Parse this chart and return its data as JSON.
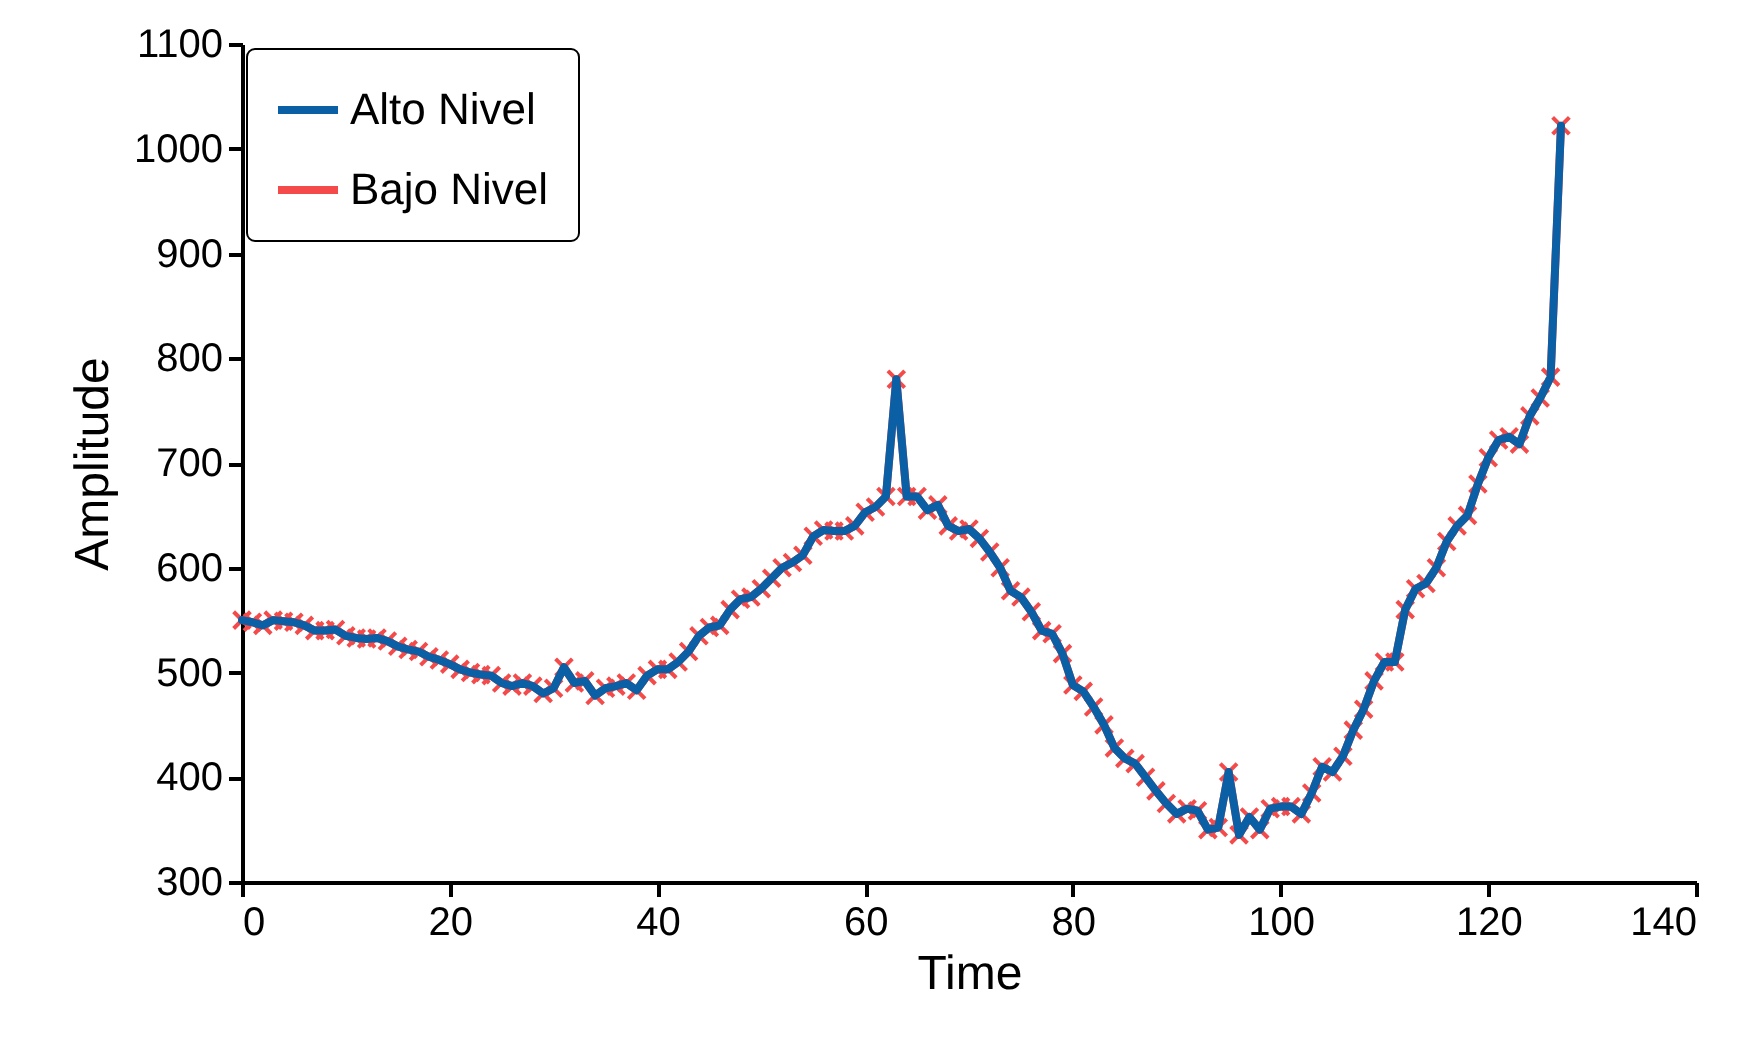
{
  "chart_data": {
    "type": "line",
    "xlabel": "Time",
    "ylabel": "Amplitude",
    "xlim": [
      0,
      140
    ],
    "xticks": [
      0,
      20,
      40,
      60,
      80,
      100,
      120,
      140
    ],
    "ylim": [
      300,
      1100
    ],
    "yticks": [
      300,
      400,
      500,
      600,
      700,
      800,
      900,
      1000,
      1100
    ],
    "legend": "top left",
    "x": [
      0,
      1,
      2,
      3,
      4,
      5,
      6,
      7,
      8,
      9,
      10,
      11,
      12,
      13,
      14,
      15,
      16,
      17,
      18,
      19,
      20,
      21,
      22,
      23,
      24,
      25,
      26,
      27,
      28,
      29,
      30,
      31,
      32,
      33,
      34,
      35,
      36,
      37,
      38,
      39,
      40,
      41,
      42,
      43,
      44,
      45,
      46,
      47,
      48,
      49,
      50,
      51,
      52,
      53,
      54,
      55,
      56,
      57,
      58,
      59,
      60,
      61,
      62,
      63,
      64,
      65,
      66,
      67,
      68,
      69,
      70,
      71,
      72,
      73,
      74,
      75,
      76,
      77,
      78,
      79,
      80,
      81,
      82,
      83,
      84,
      85,
      86,
      87,
      88,
      89,
      90,
      91,
      92,
      93,
      94,
      95,
      96,
      97,
      98,
      99,
      100,
      101,
      102,
      103,
      104,
      105,
      106,
      107,
      108,
      109,
      110,
      111,
      112,
      113,
      114,
      115,
      116,
      117,
      118,
      119,
      120,
      121,
      122,
      123,
      124,
      125,
      126,
      127
    ],
    "series": [
      {
        "name": "Alto Nivel",
        "color": "#0b5fa5",
        "marker": "none",
        "values": [
          550,
          548,
          545,
          550,
          549,
          548,
          545,
          540,
          540,
          541,
          535,
          533,
          532,
          533,
          530,
          525,
          522,
          520,
          515,
          512,
          508,
          503,
          500,
          498,
          497,
          490,
          487,
          490,
          487,
          480,
          485,
          505,
          490,
          492,
          478,
          485,
          487,
          490,
          483,
          497,
          503,
          503,
          510,
          520,
          535,
          543,
          545,
          560,
          570,
          572,
          580,
          590,
          600,
          605,
          612,
          630,
          636,
          635,
          635,
          640,
          653,
          658,
          668,
          780,
          668,
          668,
          655,
          660,
          640,
          635,
          637,
          628,
          615,
          600,
          578,
          572,
          558,
          540,
          537,
          518,
          488,
          482,
          467,
          450,
          428,
          418,
          413,
          400,
          387,
          375,
          365,
          370,
          368,
          350,
          352,
          405,
          345,
          362,
          350,
          370,
          372,
          372,
          365,
          385,
          410,
          405,
          420,
          445,
          465,
          492,
          510,
          510,
          560,
          580,
          585,
          600,
          625,
          640,
          650,
          680,
          705,
          722,
          725,
          718,
          745,
          762,
          782,
          1022
        ]
      },
      {
        "name": "Bajo Nivel",
        "color": "#f44a4a",
        "marker": "cross",
        "values": [
          550,
          548,
          545,
          550,
          549,
          548,
          545,
          540,
          540,
          541,
          535,
          533,
          532,
          533,
          530,
          525,
          522,
          520,
          515,
          512,
          508,
          503,
          500,
          498,
          497,
          490,
          487,
          490,
          487,
          480,
          485,
          505,
          490,
          492,
          478,
          485,
          487,
          490,
          483,
          497,
          503,
          503,
          510,
          520,
          535,
          543,
          545,
          560,
          570,
          572,
          580,
          590,
          600,
          605,
          612,
          630,
          636,
          635,
          635,
          640,
          653,
          658,
          668,
          780,
          668,
          668,
          655,
          660,
          640,
          635,
          637,
          628,
          615,
          600,
          578,
          572,
          558,
          540,
          537,
          518,
          488,
          482,
          467,
          450,
          428,
          418,
          413,
          400,
          387,
          375,
          365,
          370,
          368,
          350,
          352,
          405,
          345,
          362,
          350,
          370,
          372,
          372,
          365,
          385,
          410,
          405,
          420,
          445,
          465,
          492,
          510,
          510,
          560,
          580,
          585,
          600,
          625,
          640,
          650,
          680,
          705,
          722,
          725,
          718,
          745,
          762,
          782,
          1022
        ]
      }
    ]
  }
}
